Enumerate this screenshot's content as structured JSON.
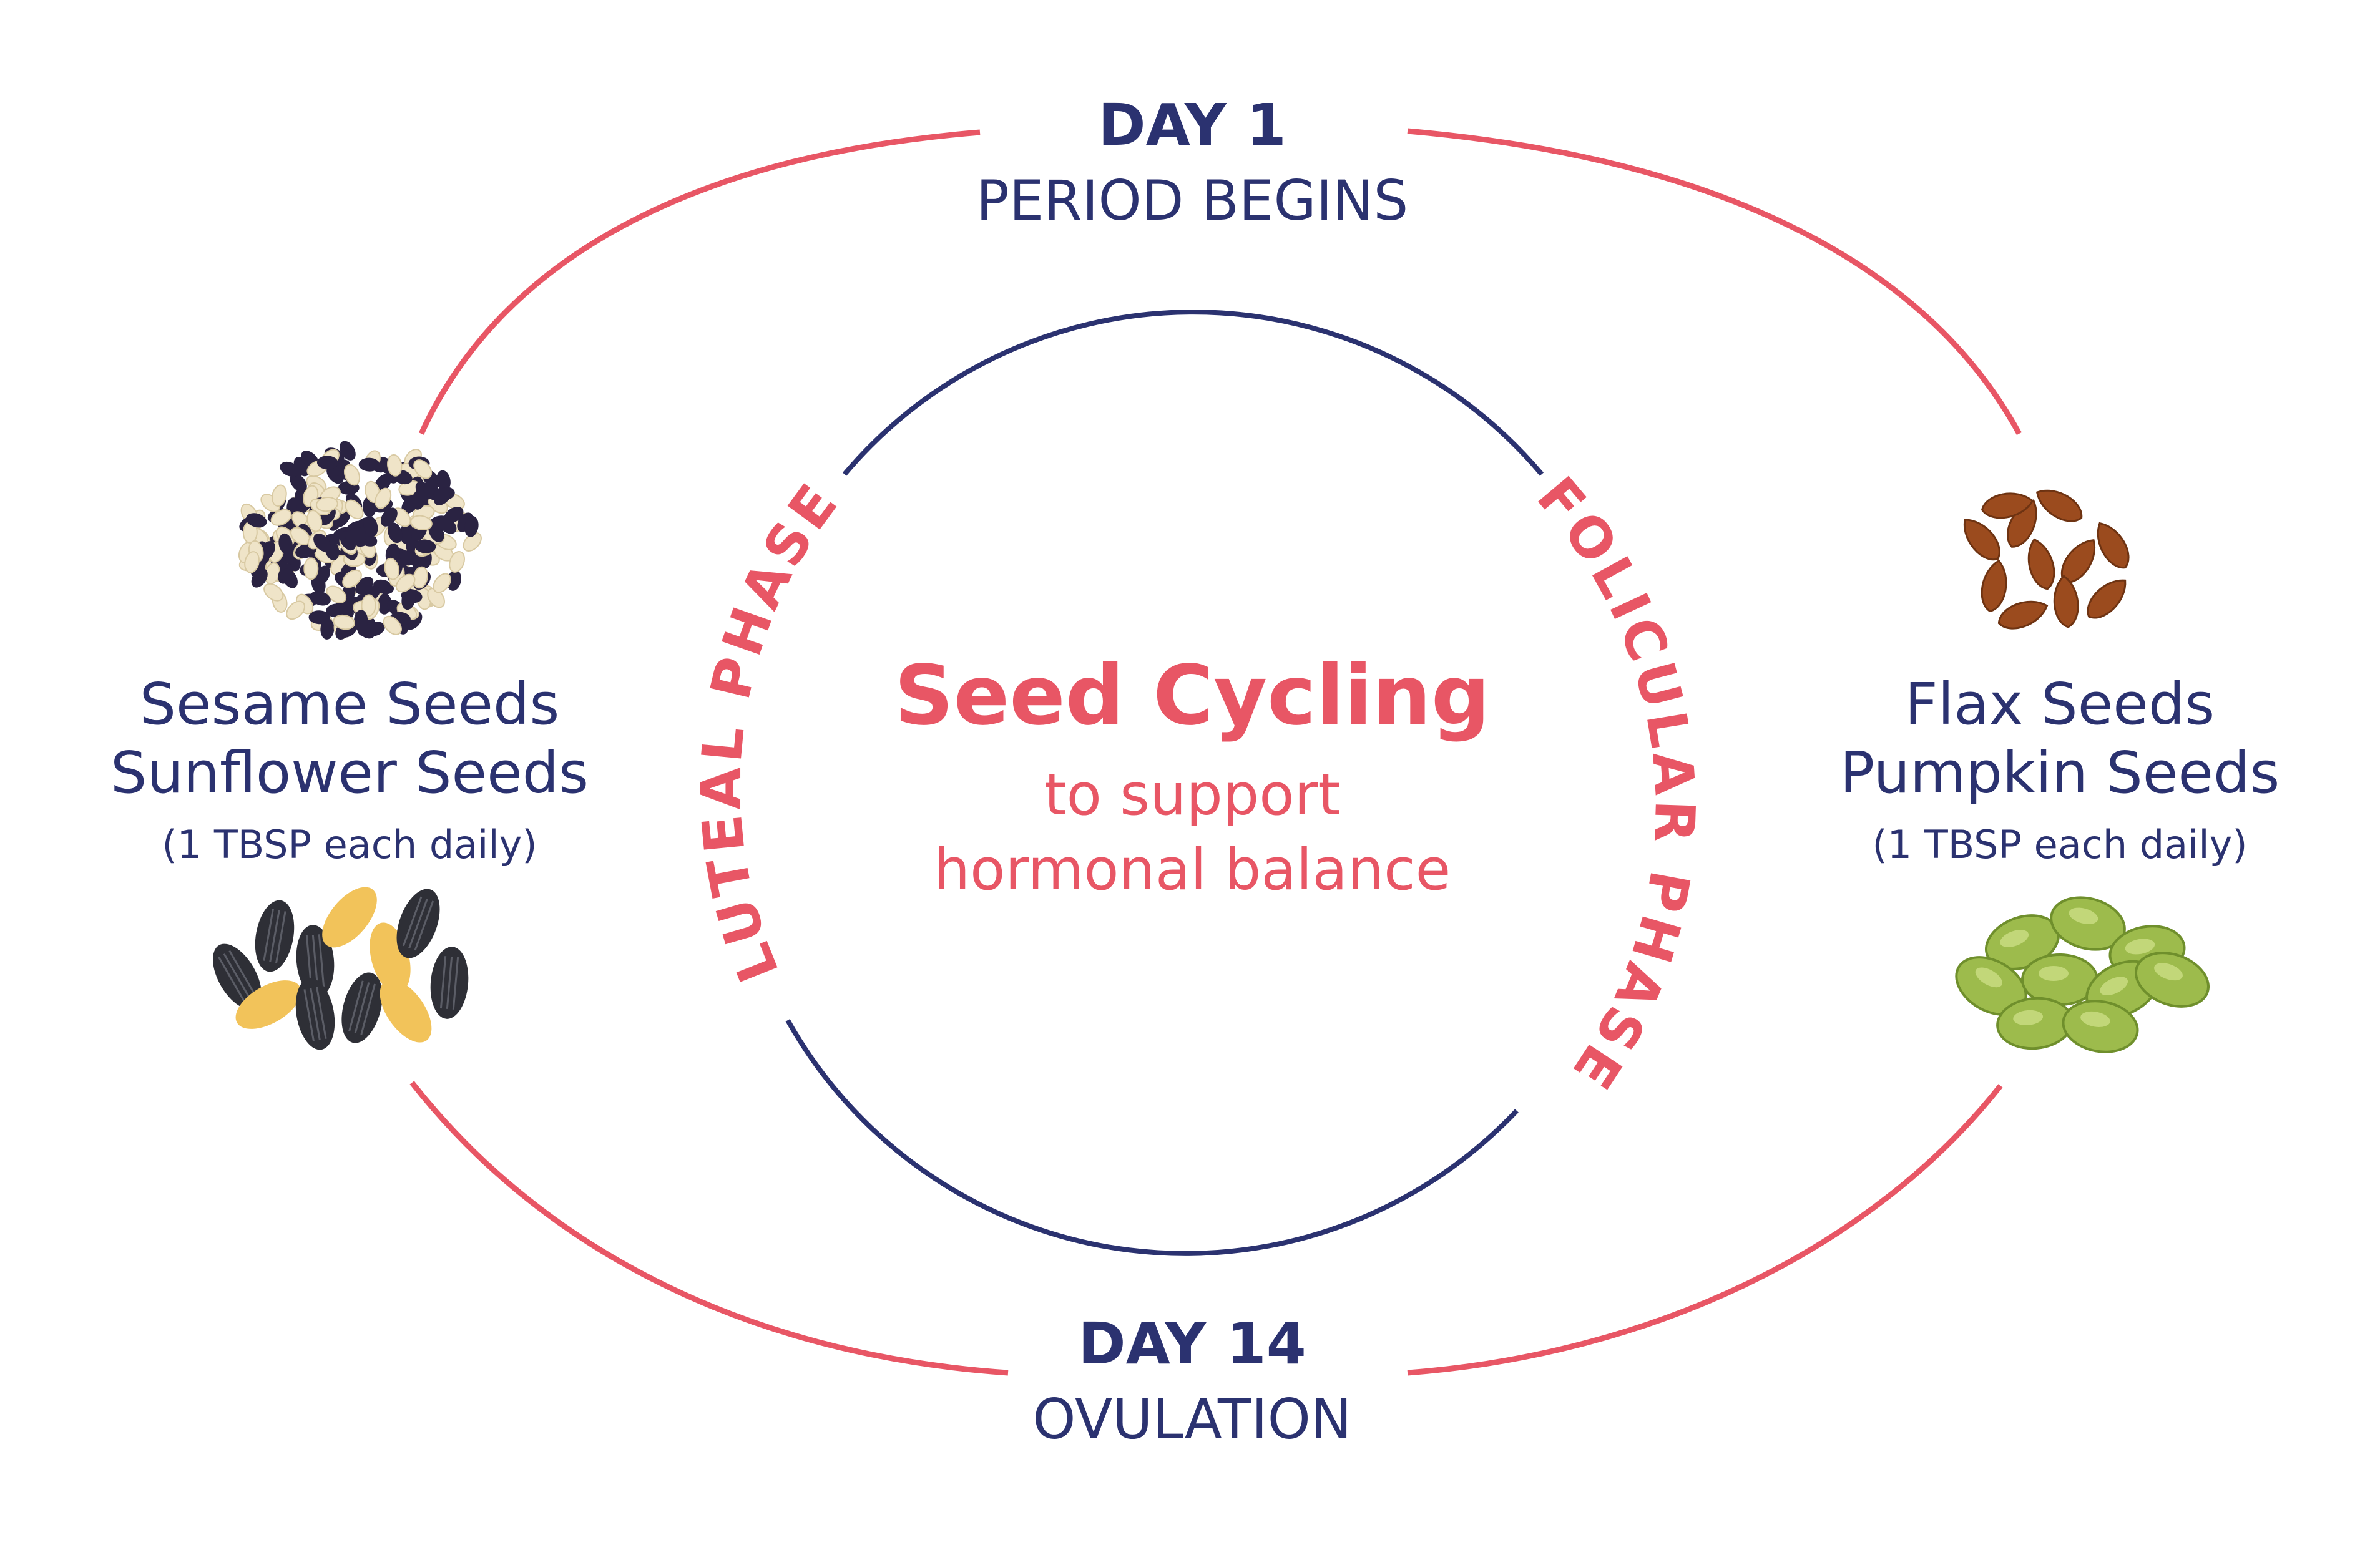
{
  "colors": {
    "navy": "#2b3270",
    "coral": "#e85665",
    "sesame_black": "#2a2342",
    "sesame_white": "#efe4c8",
    "sunflower_shell": "#2e2f36",
    "sunflower_kernel": "#f2c35a",
    "flax": "#9b4b1e",
    "pumpkin": "#9dbb4c"
  },
  "top": {
    "day": "DAY 1",
    "event": "PERIOD BEGINS"
  },
  "bottom": {
    "day": "DAY 14",
    "event": "OVULATION"
  },
  "center": {
    "title": "Seed Cycling",
    "subtitle_line1": "to support",
    "subtitle_line2": "hormonal balance"
  },
  "phases": {
    "left": "LUTEAL PHASE",
    "right": "FOLICULAR PHASE"
  },
  "left_seeds": {
    "line1": "Sesame Seeds",
    "line2": "Sunflower Seeds",
    "dose": "(1 TBSP each daily)",
    "images": [
      "sesame-seeds",
      "sunflower-seeds"
    ]
  },
  "right_seeds": {
    "line1": "Flax Seeds",
    "line2": "Pumpkin Seeds",
    "dose": "(1 TBSP each daily)",
    "images": [
      "flax-seeds",
      "pumpkin-seeds"
    ]
  }
}
